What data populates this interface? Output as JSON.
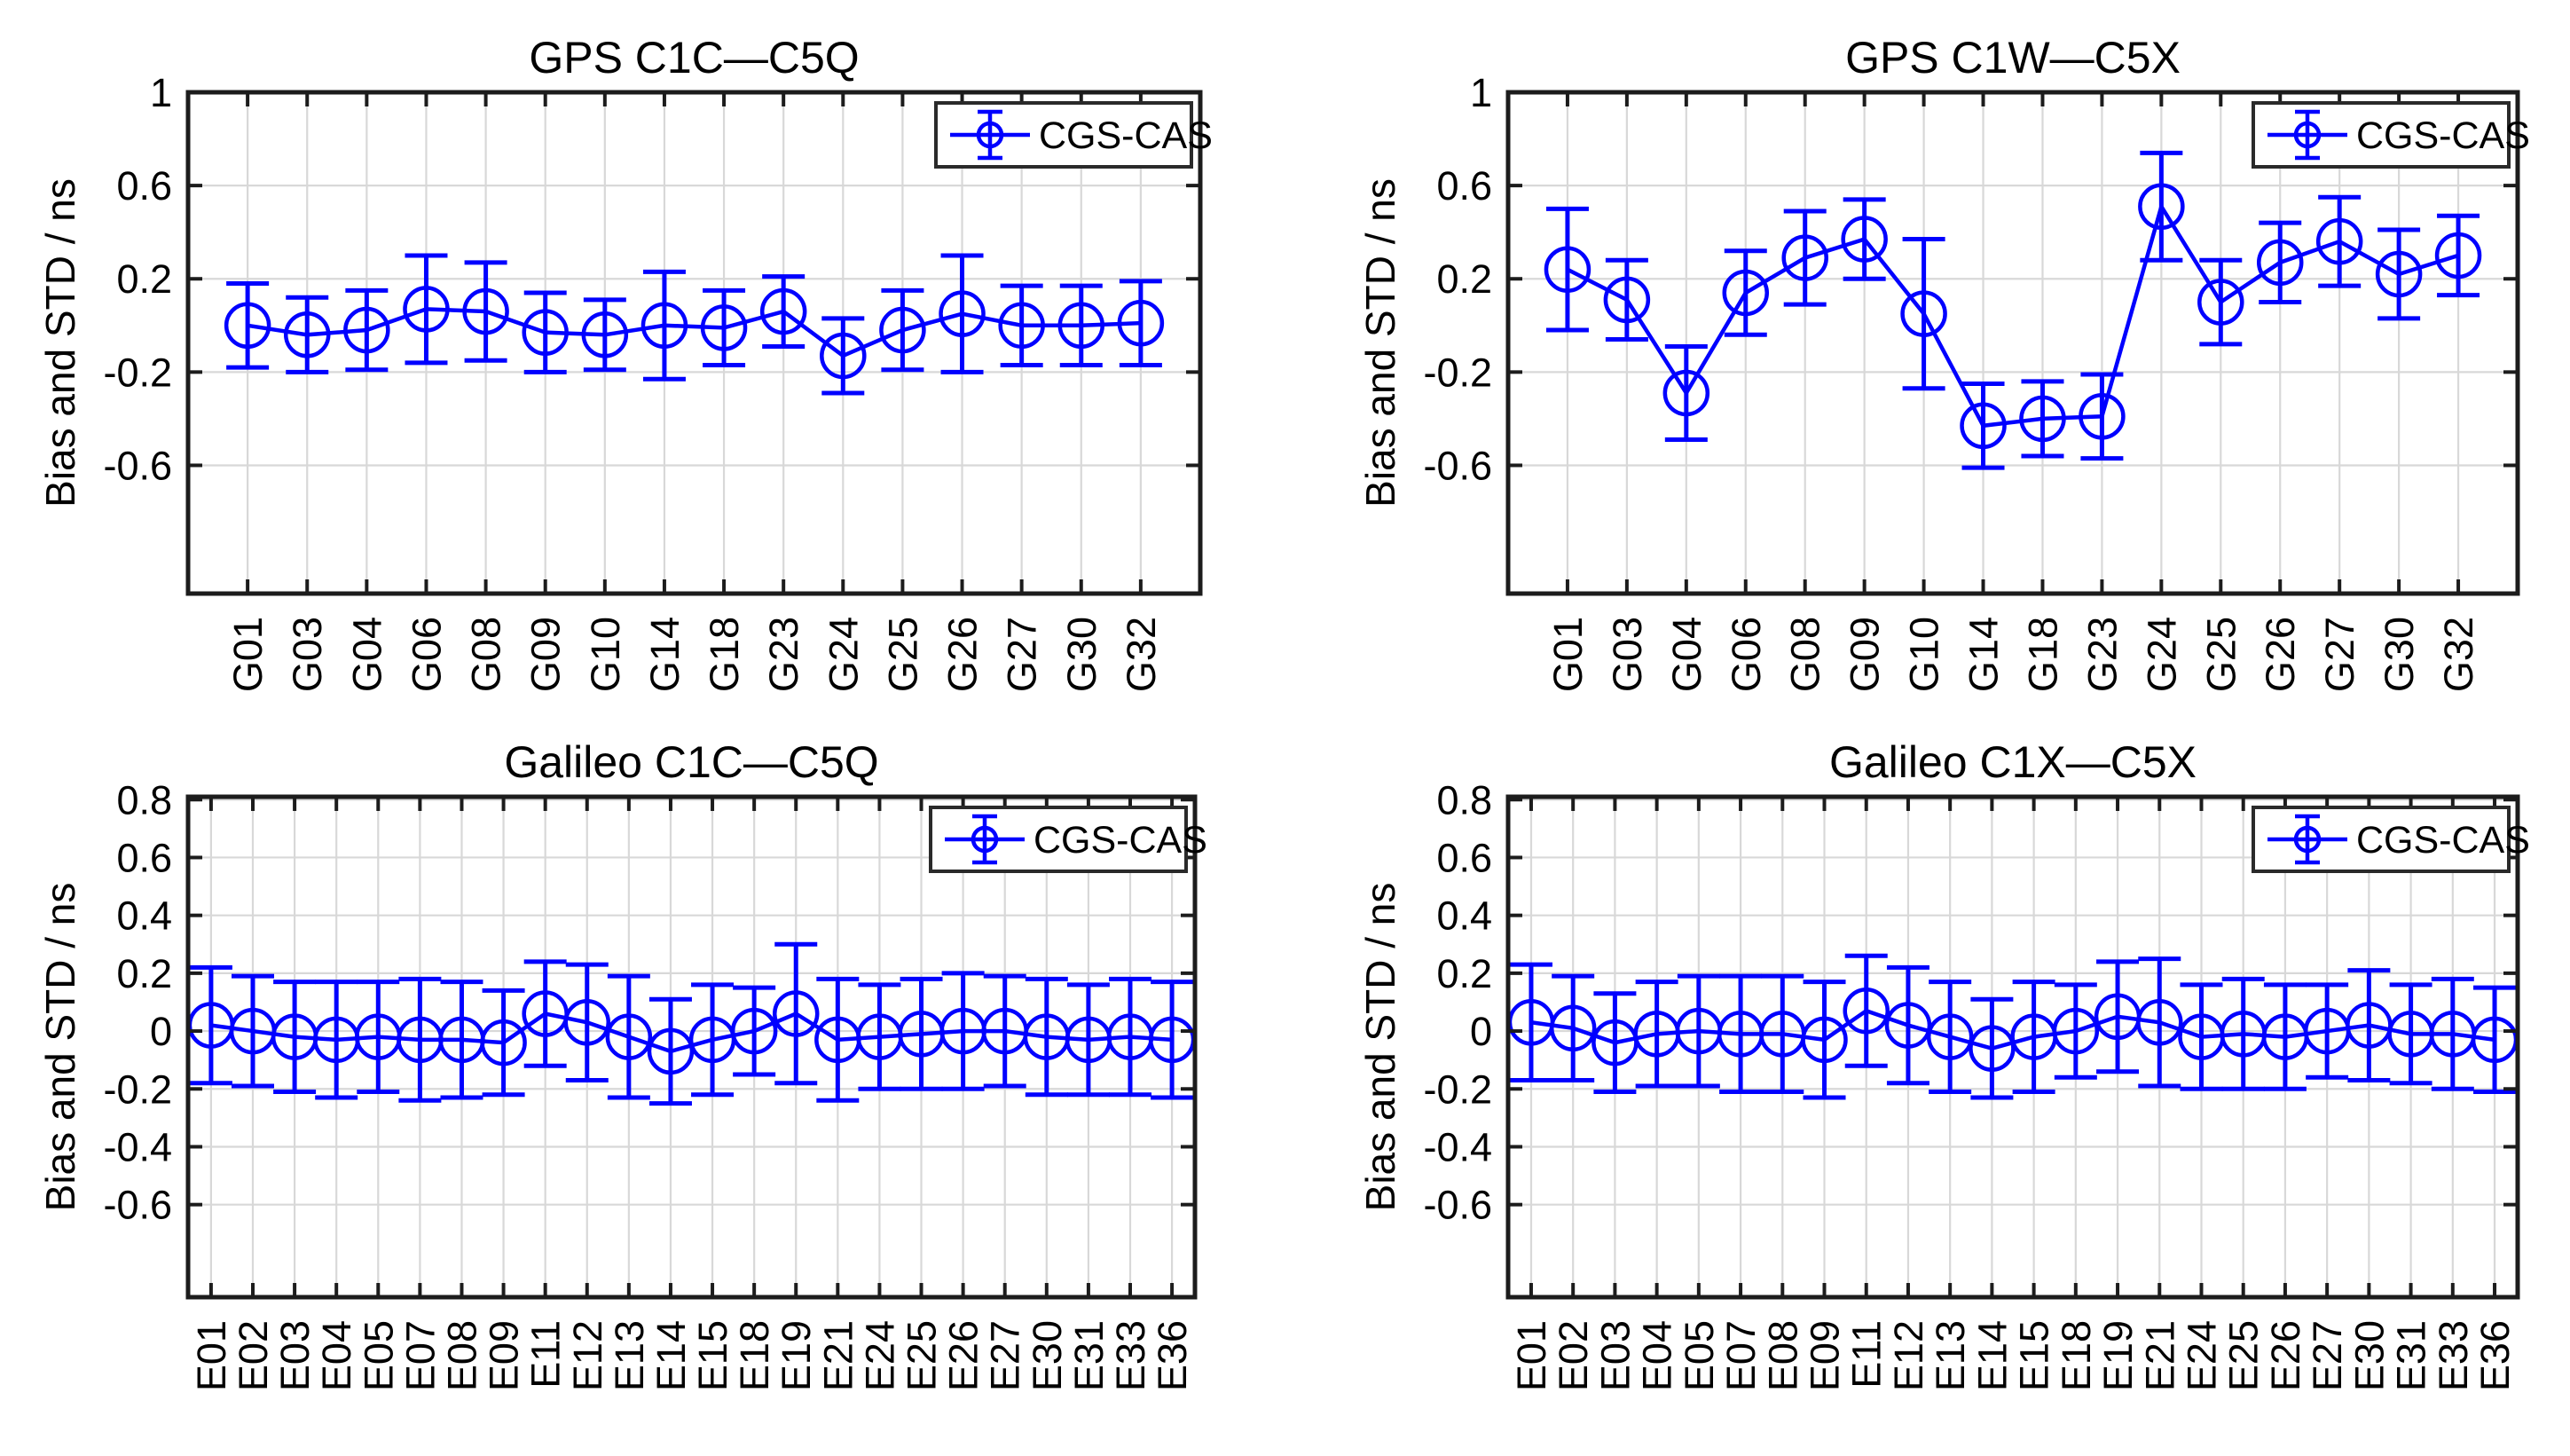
{
  "figure": {
    "background": "#ffffff",
    "accent_blue": "#0000ff",
    "grid_color": "#d8d8d8",
    "axis_color": "#1c1c1c",
    "text_color": "#000000",
    "legend_label": "CGS-CAS",
    "ylabel": "Bias and STD / ns"
  },
  "chart_data": [
    {
      "type": "line",
      "subtype": "errorbar",
      "title": "GPS C1C—C5Q",
      "xlabel": "",
      "ylabel": "Bias and STD / ns",
      "grid": true,
      "legend": {
        "label": "CGS-CAS",
        "position": "top-right"
      },
      "categories": [
        "G01",
        "G03",
        "G04",
        "G06",
        "G08",
        "G09",
        "G10",
        "G14",
        "G18",
        "G23",
        "G24",
        "G25",
        "G26",
        "G27",
        "G30",
        "G32"
      ],
      "series": [
        {
          "name": "CGS-CAS",
          "values": [
            0.0,
            -0.04,
            -0.02,
            0.07,
            0.06,
            -0.03,
            -0.04,
            0.0,
            -0.01,
            0.06,
            -0.13,
            -0.02,
            0.05,
            0.0,
            0.0,
            0.01
          ],
          "std": [
            0.18,
            0.16,
            0.17,
            0.23,
            0.21,
            0.17,
            0.15,
            0.23,
            0.16,
            0.15,
            0.16,
            0.17,
            0.25,
            0.17,
            0.17,
            0.18
          ]
        }
      ],
      "ylim": [
        -1.15,
        1.0
      ],
      "yticks": [
        1,
        0.6,
        0.2,
        -0.2,
        -0.6
      ]
    },
    {
      "type": "line",
      "subtype": "errorbar",
      "title": "GPS C1W—C5X",
      "xlabel": "",
      "ylabel": "Bias and STD / ns",
      "grid": true,
      "legend": {
        "label": "CGS-CAS",
        "position": "top-right"
      },
      "categories": [
        "G01",
        "G03",
        "G04",
        "G06",
        "G08",
        "G09",
        "G10",
        "G14",
        "G18",
        "G23",
        "G24",
        "G25",
        "G26",
        "G27",
        "G30",
        "G32"
      ],
      "series": [
        {
          "name": "CGS-CAS",
          "values": [
            0.24,
            0.11,
            -0.29,
            0.14,
            0.29,
            0.37,
            0.05,
            -0.43,
            -0.4,
            -0.39,
            0.51,
            0.1,
            0.27,
            0.36,
            0.22,
            0.3
          ],
          "std": [
            0.26,
            0.17,
            0.2,
            0.18,
            0.2,
            0.17,
            0.32,
            0.18,
            0.16,
            0.18,
            0.23,
            0.18,
            0.17,
            0.19,
            0.19,
            0.17
          ]
        }
      ],
      "ylim": [
        -1.15,
        1.0
      ],
      "yticks": [
        1,
        0.6,
        0.2,
        -0.2,
        -0.6
      ]
    },
    {
      "type": "line",
      "subtype": "errorbar",
      "title": "Galileo C1C—C5Q",
      "xlabel": "",
      "ylabel": "Bias and STD / ns",
      "grid": true,
      "legend": {
        "label": "CGS-CAS",
        "position": "top-right"
      },
      "categories": [
        "E01",
        "E02",
        "E03",
        "E04",
        "E05",
        "E07",
        "E08",
        "E09",
        "E11",
        "E12",
        "E13",
        "E14",
        "E15",
        "E18",
        "E19",
        "E21",
        "E24",
        "E25",
        "E26",
        "E27",
        "E30",
        "E31",
        "E33",
        "E36"
      ],
      "series": [
        {
          "name": "CGS-CAS",
          "values": [
            0.02,
            0.0,
            -0.02,
            -0.03,
            -0.02,
            -0.03,
            -0.03,
            -0.04,
            0.06,
            0.03,
            -0.02,
            -0.07,
            -0.03,
            0.0,
            0.06,
            -0.03,
            -0.02,
            -0.01,
            0.0,
            0.0,
            -0.02,
            -0.03,
            -0.02,
            -0.03
          ],
          "std": [
            0.2,
            0.19,
            0.19,
            0.2,
            0.19,
            0.21,
            0.2,
            0.18,
            0.18,
            0.2,
            0.21,
            0.18,
            0.19,
            0.15,
            0.24,
            0.21,
            0.18,
            0.19,
            0.2,
            0.19,
            0.2,
            0.19,
            0.2,
            0.2
          ]
        }
      ],
      "ylim": [
        -0.92,
        0.81
      ],
      "yticks": [
        0.8,
        0.6,
        0.4,
        0.2,
        0,
        -0.2,
        -0.4,
        -0.6
      ]
    },
    {
      "type": "line",
      "subtype": "errorbar",
      "title": "Galileo C1X—C5X",
      "xlabel": "",
      "ylabel": "Bias and STD / ns",
      "grid": true,
      "legend": {
        "label": "CGS-CAS",
        "position": "top-right"
      },
      "categories": [
        "E01",
        "E02",
        "E03",
        "E04",
        "E05",
        "E07",
        "E08",
        "E09",
        "E11",
        "E12",
        "E13",
        "E14",
        "E15",
        "E18",
        "E19",
        "E21",
        "E24",
        "E25",
        "E26",
        "E27",
        "E30",
        "E31",
        "E33",
        "E36"
      ],
      "series": [
        {
          "name": "CGS-CAS",
          "values": [
            0.03,
            0.01,
            -0.04,
            -0.01,
            0.0,
            -0.01,
            -0.01,
            -0.03,
            0.07,
            0.02,
            -0.02,
            -0.06,
            -0.02,
            0.0,
            0.05,
            0.03,
            -0.02,
            -0.01,
            -0.02,
            0.0,
            0.02,
            -0.01,
            -0.01,
            -0.03
          ],
          "std": [
            0.2,
            0.18,
            0.17,
            0.18,
            0.19,
            0.2,
            0.2,
            0.2,
            0.19,
            0.2,
            0.19,
            0.17,
            0.19,
            0.16,
            0.19,
            0.22,
            0.18,
            0.19,
            0.18,
            0.16,
            0.19,
            0.17,
            0.19,
            0.18
          ]
        }
      ],
      "ylim": [
        -0.92,
        0.81
      ],
      "yticks": [
        0.8,
        0.6,
        0.4,
        0.2,
        0,
        -0.2,
        -0.4,
        -0.6
      ]
    }
  ]
}
